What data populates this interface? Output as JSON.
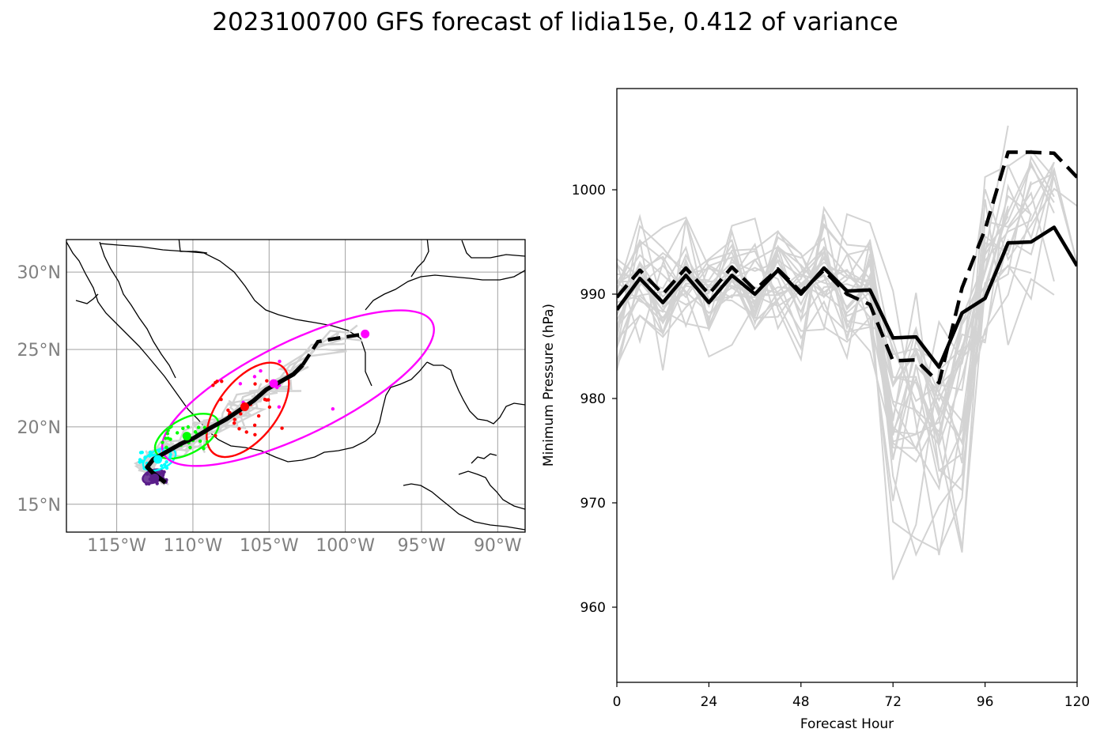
{
  "title": "2023100700 GFS forecast of lidia15e, 0.412 of variance",
  "colors": {
    "ensemble": "#d3d3d3",
    "mean": "#000000",
    "grid": "#a0a0a0",
    "tick_map": "#808080",
    "ellipses": [
      "#8000ff",
      "#00ffff",
      "#00ff00",
      "#ff0000",
      "#ff00ff"
    ]
  },
  "chart_data": [
    {
      "type": "map",
      "xticks": [
        "115°W",
        "110°W",
        "105°W",
        "100°W",
        "95°W",
        "90°W"
      ],
      "yticks": [
        "30°N",
        "25°N",
        "20°N",
        "15°N"
      ],
      "xlim": [
        -118.3,
        -88.2
      ],
      "ylim": [
        13.2,
        32.1
      ],
      "grid": true,
      "mean_track_solid": [
        [
          -111.8,
          16.4
        ],
        [
          -112.6,
          17.0
        ],
        [
          -113.0,
          17.4
        ],
        [
          -112.6,
          17.9
        ],
        [
          -111.7,
          18.4
        ],
        [
          -110.8,
          18.9
        ],
        [
          -109.9,
          19.3
        ],
        [
          -108.9,
          19.9
        ],
        [
          -107.8,
          20.5
        ],
        [
          -106.9,
          21.1
        ],
        [
          -106.0,
          21.7
        ],
        [
          -105.2,
          22.4
        ],
        [
          -104.3,
          22.9
        ],
        [
          -103.4,
          23.4
        ],
        [
          -102.8,
          24.0
        ]
      ],
      "mean_track_dashed": [
        [
          -102.8,
          24.0
        ],
        [
          -101.8,
          25.5
        ],
        [
          -100.7,
          25.7
        ],
        [
          -99.4,
          25.9
        ],
        [
          -98.7,
          26.0
        ]
      ],
      "ellipse_centers": [
        {
          "lon": -112.5,
          "lat": 16.7,
          "color": "#5a1e8a"
        },
        {
          "lon": -112.3,
          "lat": 17.9,
          "color": "#00ffff"
        },
        {
          "lon": -110.4,
          "lat": 19.4,
          "color": "#00ff00"
        },
        {
          "lon": -106.6,
          "lat": 21.3,
          "color": "#ff0000"
        },
        {
          "lon": -104.7,
          "lat": 22.8,
          "color": "#ff00ff"
        },
        {
          "lon": -98.7,
          "lat": 26.0,
          "color": "#ff00ff"
        }
      ]
    },
    {
      "type": "line",
      "xlabel": "Forecast Hour",
      "ylabel": "Minimum Pressure (hPa)",
      "xticks": [
        0,
        24,
        48,
        72,
        96,
        120
      ],
      "yticks": [
        960,
        970,
        980,
        990,
        1000
      ],
      "xlim": [
        0,
        120
      ],
      "ylim": [
        952.8,
        1009.7
      ],
      "series": [
        {
          "style": "solid",
          "x": [
            0,
            6,
            12,
            18,
            24,
            30,
            36,
            42,
            48,
            54,
            60,
            66,
            72,
            78,
            84,
            90,
            96,
            102,
            108,
            114,
            120
          ],
          "y": [
            988.5,
            991.5,
            989.2,
            991.8,
            989.2,
            991.8,
            990.0,
            992.3,
            990.0,
            992.5,
            990.3,
            990.4,
            985.8,
            985.9,
            983.0,
            988.2,
            989.6,
            994.9,
            995.0,
            996.4,
            992.7
          ]
        },
        {
          "style": "dashed",
          "x": [
            0,
            6,
            12,
            18,
            24,
            30,
            36,
            42,
            48,
            54,
            60,
            66,
            72,
            78,
            84,
            90,
            96,
            102,
            108,
            114,
            120
          ],
          "y": [
            989.7,
            992.3,
            990.0,
            992.5,
            990.0,
            992.6,
            990.4,
            992.4,
            990.2,
            992.3,
            990.0,
            989.0,
            983.6,
            983.7,
            981.5,
            990.6,
            996.2,
            1003.6,
            1003.6,
            1003.5,
            1001.2
          ]
        }
      ]
    }
  ]
}
